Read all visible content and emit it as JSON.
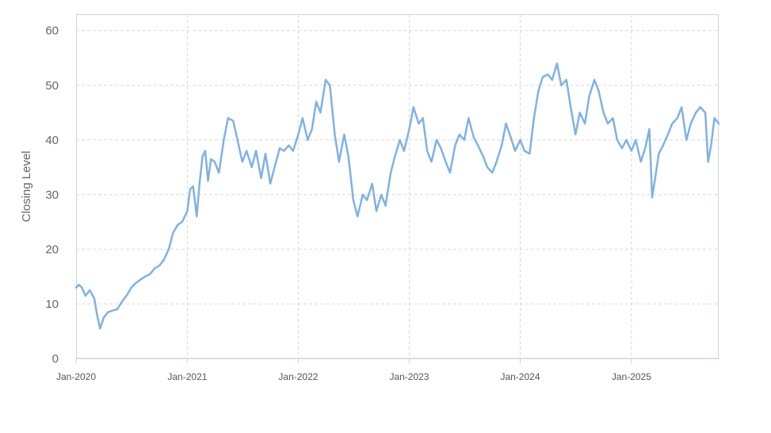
{
  "chart_data": {
    "type": "line",
    "title": "",
    "xlabel": "",
    "ylabel": "Closing Level",
    "ylim": [
      0,
      63
    ],
    "xlim": [
      "2020-01-01",
      "2025-10-15"
    ],
    "y_ticks": [
      "0",
      "10",
      "20",
      "30",
      "40",
      "50",
      "60"
    ],
    "x_ticks": [
      {
        "label": "Jan-2020",
        "date": "2020-01-01"
      },
      {
        "label": "Jan-2021",
        "date": "2021-01-01"
      },
      {
        "label": "Jan-2022",
        "date": "2022-01-01"
      },
      {
        "label": "Jan-2023",
        "date": "2023-01-01"
      },
      {
        "label": "Jan-2024",
        "date": "2024-01-01"
      },
      {
        "label": "Jan-2025",
        "date": "2025-01-01"
      }
    ],
    "grid": true,
    "legend": "none",
    "series": [
      {
        "color": "#7fb2e5",
        "points": [
          [
            "2020-01-01",
            13.0
          ],
          [
            "2020-01-10",
            13.5
          ],
          [
            "2020-01-20",
            13.0
          ],
          [
            "2020-02-01",
            11.5
          ],
          [
            "2020-02-15",
            12.5
          ],
          [
            "2020-03-01",
            11.0
          ],
          [
            "2020-03-10",
            8.0
          ],
          [
            "2020-03-20",
            5.5
          ],
          [
            "2020-04-01",
            7.5
          ],
          [
            "2020-04-15",
            8.5
          ],
          [
            "2020-05-01",
            8.8
          ],
          [
            "2020-05-15",
            9.0
          ],
          [
            "2020-06-01",
            10.5
          ],
          [
            "2020-06-15",
            11.5
          ],
          [
            "2020-07-01",
            13.0
          ],
          [
            "2020-07-15",
            13.8
          ],
          [
            "2020-08-01",
            14.5
          ],
          [
            "2020-08-15",
            15.0
          ],
          [
            "2020-09-01",
            15.5
          ],
          [
            "2020-09-15",
            16.5
          ],
          [
            "2020-10-01",
            17.0
          ],
          [
            "2020-10-15",
            18.0
          ],
          [
            "2020-11-01",
            20.0
          ],
          [
            "2020-11-15",
            23.0
          ],
          [
            "2020-12-01",
            24.5
          ],
          [
            "2020-12-15",
            25.0
          ],
          [
            "2021-01-01",
            27.0
          ],
          [
            "2021-01-10",
            31.0
          ],
          [
            "2021-01-20",
            31.5
          ],
          [
            "2021-02-01",
            26.0
          ],
          [
            "2021-02-10",
            32.0
          ],
          [
            "2021-02-20",
            37.0
          ],
          [
            "2021-03-01",
            38.0
          ],
          [
            "2021-03-10",
            32.5
          ],
          [
            "2021-03-20",
            36.5
          ],
          [
            "2021-04-01",
            36.0
          ],
          [
            "2021-04-15",
            34.0
          ],
          [
            "2021-05-01",
            40.0
          ],
          [
            "2021-05-15",
            44.0
          ],
          [
            "2021-06-01",
            43.5
          ],
          [
            "2021-06-15",
            40.0
          ],
          [
            "2021-07-01",
            36.0
          ],
          [
            "2021-07-15",
            38.0
          ],
          [
            "2021-08-01",
            35.0
          ],
          [
            "2021-08-15",
            38.0
          ],
          [
            "2021-09-01",
            33.0
          ],
          [
            "2021-09-15",
            37.5
          ],
          [
            "2021-10-01",
            32.0
          ],
          [
            "2021-10-15",
            35.0
          ],
          [
            "2021-11-01",
            38.5
          ],
          [
            "2021-11-15",
            38.0
          ],
          [
            "2021-12-01",
            39.0
          ],
          [
            "2021-12-15",
            38.0
          ],
          [
            "2022-01-01",
            41.0
          ],
          [
            "2022-01-15",
            44.0
          ],
          [
            "2022-02-01",
            40.0
          ],
          [
            "2022-02-15",
            42.0
          ],
          [
            "2022-03-01",
            47.0
          ],
          [
            "2022-03-15",
            45.0
          ],
          [
            "2022-04-01",
            51.0
          ],
          [
            "2022-04-15",
            50.0
          ],
          [
            "2022-05-01",
            41.0
          ],
          [
            "2022-05-15",
            36.0
          ],
          [
            "2022-06-01",
            41.0
          ],
          [
            "2022-06-15",
            37.0
          ],
          [
            "2022-07-01",
            29.0
          ],
          [
            "2022-07-15",
            26.0
          ],
          [
            "2022-08-01",
            30.0
          ],
          [
            "2022-08-15",
            29.0
          ],
          [
            "2022-09-01",
            32.0
          ],
          [
            "2022-09-15",
            27.0
          ],
          [
            "2022-10-01",
            30.0
          ],
          [
            "2022-10-15",
            28.0
          ],
          [
            "2022-11-01",
            34.0
          ],
          [
            "2022-11-15",
            37.0
          ],
          [
            "2022-12-01",
            40.0
          ],
          [
            "2022-12-15",
            38.0
          ],
          [
            "2023-01-01",
            42.0
          ],
          [
            "2023-01-15",
            46.0
          ],
          [
            "2023-02-01",
            43.0
          ],
          [
            "2023-02-15",
            44.0
          ],
          [
            "2023-03-01",
            38.0
          ],
          [
            "2023-03-15",
            36.0
          ],
          [
            "2023-04-01",
            40.0
          ],
          [
            "2023-04-15",
            38.5
          ],
          [
            "2023-05-01",
            36.0
          ],
          [
            "2023-05-15",
            34.0
          ],
          [
            "2023-06-01",
            39.0
          ],
          [
            "2023-06-15",
            41.0
          ],
          [
            "2023-07-01",
            40.0
          ],
          [
            "2023-07-15",
            44.0
          ],
          [
            "2023-08-01",
            40.5
          ],
          [
            "2023-08-15",
            39.0
          ],
          [
            "2023-09-01",
            37.0
          ],
          [
            "2023-09-15",
            35.0
          ],
          [
            "2023-10-01",
            34.0
          ],
          [
            "2023-10-15",
            36.0
          ],
          [
            "2023-11-01",
            39.0
          ],
          [
            "2023-11-15",
            43.0
          ],
          [
            "2023-12-01",
            40.5
          ],
          [
            "2023-12-15",
            38.0
          ],
          [
            "2024-01-01",
            40.0
          ],
          [
            "2024-01-15",
            38.0
          ],
          [
            "2024-02-01",
            37.5
          ],
          [
            "2024-02-15",
            44.0
          ],
          [
            "2024-03-01",
            49.0
          ],
          [
            "2024-03-15",
            51.5
          ],
          [
            "2024-04-01",
            52.0
          ],
          [
            "2024-04-15",
            51.0
          ],
          [
            "2024-05-01",
            54.0
          ],
          [
            "2024-05-15",
            50.0
          ],
          [
            "2024-06-01",
            51.0
          ],
          [
            "2024-06-15",
            46.0
          ],
          [
            "2024-07-01",
            41.0
          ],
          [
            "2024-07-15",
            45.0
          ],
          [
            "2024-08-01",
            43.0
          ],
          [
            "2024-08-15",
            48.0
          ],
          [
            "2024-09-01",
            51.0
          ],
          [
            "2024-09-15",
            49.0
          ],
          [
            "2024-10-01",
            45.0
          ],
          [
            "2024-10-15",
            43.0
          ],
          [
            "2024-11-01",
            44.0
          ],
          [
            "2024-11-15",
            40.0
          ],
          [
            "2024-12-01",
            38.5
          ],
          [
            "2024-12-15",
            40.0
          ],
          [
            "2025-01-01",
            38.0
          ],
          [
            "2025-01-15",
            40.0
          ],
          [
            "2025-02-01",
            36.0
          ],
          [
            "2025-02-15",
            38.5
          ],
          [
            "2025-03-01",
            42.0
          ],
          [
            "2025-03-10",
            29.5
          ],
          [
            "2025-03-20",
            33.0
          ],
          [
            "2025-04-01",
            37.5
          ],
          [
            "2025-04-15",
            39.0
          ],
          [
            "2025-05-01",
            41.0
          ],
          [
            "2025-05-15",
            43.0
          ],
          [
            "2025-06-01",
            44.0
          ],
          [
            "2025-06-15",
            46.0
          ],
          [
            "2025-07-01",
            40.0
          ],
          [
            "2025-07-15",
            43.0
          ],
          [
            "2025-08-01",
            45.0
          ],
          [
            "2025-08-15",
            46.0
          ],
          [
            "2025-09-01",
            45.0
          ],
          [
            "2025-09-10",
            36.0
          ],
          [
            "2025-09-20",
            39.0
          ],
          [
            "2025-10-01",
            44.0
          ],
          [
            "2025-10-15",
            43.0
          ]
        ]
      }
    ]
  }
}
